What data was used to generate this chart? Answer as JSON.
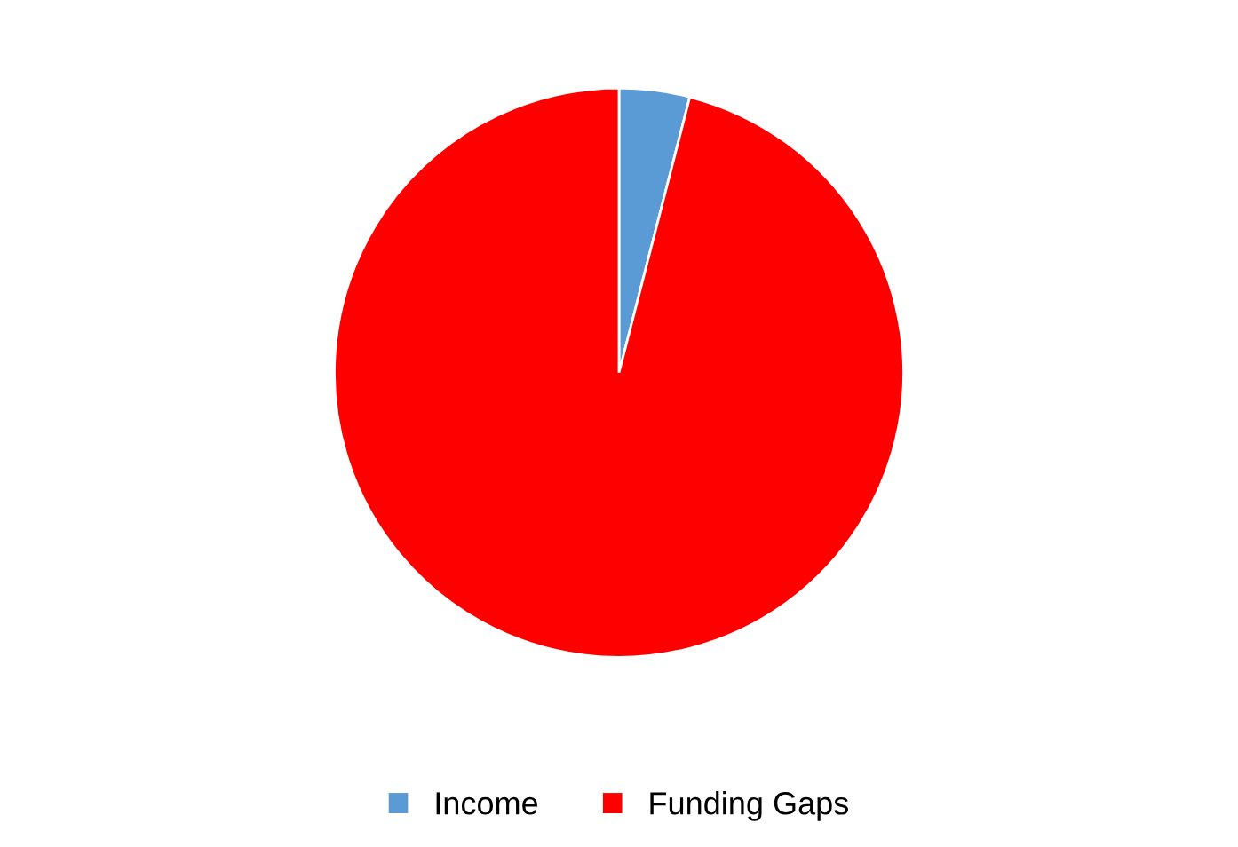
{
  "chart_data": {
    "type": "pie",
    "categories": [
      "Income",
      "Funding Gaps"
    ],
    "values": [
      4,
      96
    ],
    "colors": [
      "#5b9bd5",
      "#ff0000"
    ],
    "legend": "bottom"
  }
}
